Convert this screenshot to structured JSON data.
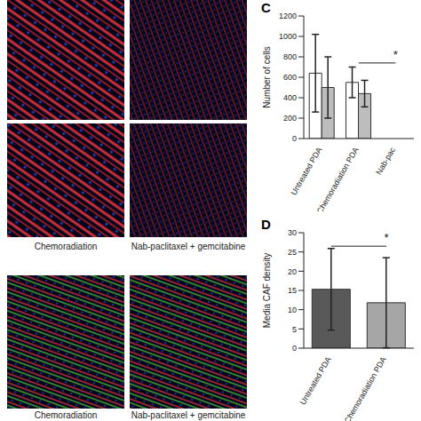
{
  "image_panels": {
    "label_rows": [
      [
        "Chemoradiation",
        "Nab-paclitaxel + gemcitabine"
      ],
      [
        "Chemoradiation",
        "Nab-paclitaxel + gemcitabine"
      ]
    ]
  },
  "chart_data": [
    {
      "type": "bar",
      "panel_label": "C",
      "ylabel": "Number of cells",
      "categories": [
        "Untreated PDA",
        "Chemoradiation PDA",
        "Nab-pac"
      ],
      "series": [
        {
          "color": "#ffffff",
          "values": [
            640,
            550,
            null
          ],
          "errors": [
            380,
            150,
            null
          ]
        },
        {
          "color": "#bdbdbd",
          "values": [
            500,
            440,
            null
          ],
          "errors": [
            300,
            130,
            null
          ]
        }
      ],
      "ylim": [
        0,
        1200
      ],
      "yticks": [
        0,
        200,
        400,
        600,
        800,
        1000,
        1200
      ],
      "annotations": [
        {
          "text": "*",
          "from": "Chemoradiation PDA",
          "to": "Nab-pac",
          "y": 740
        }
      ]
    },
    {
      "type": "bar",
      "panel_label": "D",
      "ylabel": "Media CAF density",
      "categories": [
        "Untreated PDA",
        "Chemoradiation PDA"
      ],
      "values": [
        15.3,
        11.8
      ],
      "errors": [
        10.6,
        11.7
      ],
      "colors": [
        "#595959",
        "#a6a6a6"
      ],
      "ylim": [
        0,
        30
      ],
      "yticks": [
        0,
        5,
        10,
        15,
        20,
        25,
        30
      ],
      "annotations": [
        {
          "text": "*",
          "from": "Untreated PDA",
          "to": "Chemoradiation PDA",
          "y": 26.5
        }
      ]
    }
  ]
}
